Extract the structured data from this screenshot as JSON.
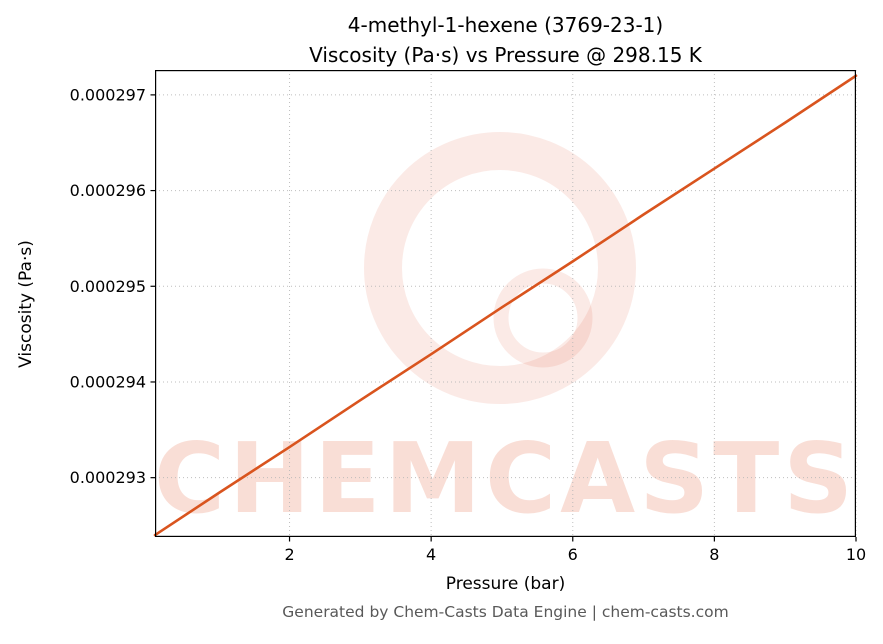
{
  "title": {
    "line1": "4-methyl-1-hexene (3769-23-1)",
    "line2": "Viscosity (Pa·s) vs Pressure @ 298.15 K"
  },
  "watermark": "CHEMCASTS",
  "footer": "Generated by Chem-Casts Data Engine | chem-casts.com",
  "chart_data": {
    "type": "line",
    "title": "4-methyl-1-hexene (3769-23-1) — Viscosity (Pa·s) vs Pressure @ 298.15 K",
    "xlabel": "Pressure (bar)",
    "ylabel": "Viscosity (Pa·s)",
    "xlim": [
      0.1,
      10
    ],
    "ylim": [
      0.00029238,
      0.00029726
    ],
    "x_ticks": [
      2,
      4,
      6,
      8,
      10
    ],
    "x_tick_labels": [
      "2",
      "4",
      "6",
      "8",
      "10"
    ],
    "y_ticks": [
      0.000293,
      0.000294,
      0.000295,
      0.000296,
      0.000297
    ],
    "y_tick_labels": [
      "0.000293",
      "0.000294",
      "0.000295",
      "0.000296",
      "0.000297"
    ],
    "grid": true,
    "legend": false,
    "line_color": "#d9541e",
    "watermark_color": "#e2603a",
    "series": [
      {
        "name": "Viscosity (Pa·s)",
        "x": [
          0.1,
          1,
          2,
          3,
          4,
          5,
          6,
          7,
          8,
          9,
          10
        ],
        "y": [
          0.0002924,
          0.00029284,
          0.00029332,
          0.00029381,
          0.00029429,
          0.00029478,
          0.00029526,
          0.00029575,
          0.00029623,
          0.00029671,
          0.0002972
        ]
      }
    ]
  }
}
